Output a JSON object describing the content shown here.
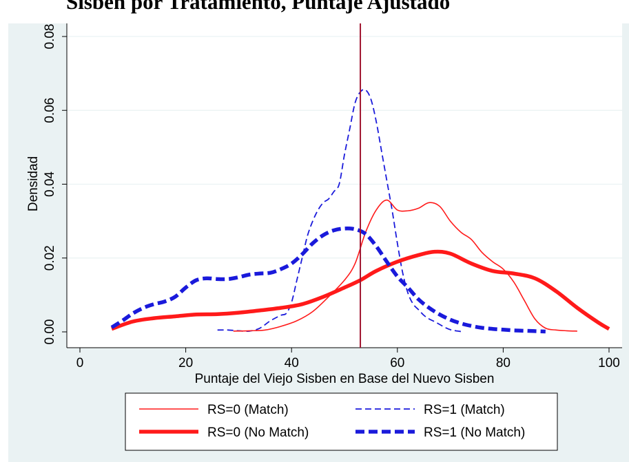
{
  "title": "Sisbén por Tratamiento, Puntaje Ajustado",
  "chart_data": {
    "type": "line",
    "title": "Sisbén por Tratamiento, Puntaje Ajustado",
    "xlabel": "Puntaje del Viejo Sisben en Base del Nuevo Sisben",
    "ylabel": "Densidad",
    "xlim": [
      0,
      100
    ],
    "ylim": [
      0,
      0.08
    ],
    "xticks": [
      "0",
      "20",
      "40",
      "60",
      "80",
      "100"
    ],
    "yticks": [
      "0.00",
      "0.02",
      "0.04",
      "0.06",
      "0.08"
    ],
    "grid": "horizontal",
    "legend_position": "bottom",
    "vline_x": 53,
    "colors": {
      "rs0": "#ff1a1a",
      "rs1": "#1a1adb",
      "vline": "#a0142f",
      "background": "#eaf2f3"
    },
    "series": [
      {
        "name": "RS=0 (Match)",
        "style": "thin-solid",
        "color": "#ff1a1a",
        "x": [
          29,
          32,
          35,
          38,
          41,
          44,
          47,
          50,
          52,
          54,
          56,
          58,
          60,
          62,
          64,
          66,
          68,
          70,
          72,
          74,
          76,
          78,
          80,
          82,
          84,
          86,
          88,
          90,
          92,
          94
        ],
        "y": [
          0.0002,
          0.0003,
          0.0005,
          0.0015,
          0.003,
          0.0055,
          0.0095,
          0.014,
          0.0185,
          0.027,
          0.033,
          0.0357,
          0.033,
          0.0328,
          0.0335,
          0.035,
          0.034,
          0.03,
          0.027,
          0.025,
          0.0215,
          0.019,
          0.017,
          0.0135,
          0.0085,
          0.0035,
          0.001,
          0.0005,
          0.0003,
          0.0002
        ]
      },
      {
        "name": "RS=1 (Match)",
        "style": "thin-dashed",
        "color": "#1a1adb",
        "x": [
          26,
          28,
          30,
          32,
          34,
          36,
          38,
          39,
          40,
          41,
          42,
          43,
          44,
          45,
          46,
          47,
          48,
          49,
          50,
          51,
          52,
          53,
          54,
          55,
          56,
          57,
          58,
          59,
          60,
          61,
          62,
          63,
          64,
          65,
          66,
          67,
          68,
          69,
          70,
          71,
          72
        ],
        "y": [
          0.0005,
          0.0005,
          0.0003,
          0.0002,
          0.001,
          0.003,
          0.0045,
          0.005,
          0.008,
          0.014,
          0.02,
          0.026,
          0.03,
          0.033,
          0.035,
          0.036,
          0.038,
          0.04,
          0.048,
          0.055,
          0.062,
          0.065,
          0.0655,
          0.063,
          0.057,
          0.049,
          0.041,
          0.033,
          0.024,
          0.016,
          0.0105,
          0.0075,
          0.006,
          0.0045,
          0.0035,
          0.0028,
          0.002,
          0.0012,
          0.0006,
          0.0003,
          0.0001
        ]
      },
      {
        "name": "RS=0 (No Match)",
        "style": "thick-solid",
        "color": "#ff1a1a",
        "x": [
          6,
          10,
          14,
          18,
          22,
          26,
          30,
          34,
          38,
          42,
          46,
          50,
          53,
          56,
          60,
          64,
          67,
          70,
          74,
          78,
          82,
          86,
          90,
          94,
          98,
          100
        ],
        "y": [
          0.0008,
          0.0028,
          0.0037,
          0.0042,
          0.0047,
          0.0048,
          0.0052,
          0.0058,
          0.0065,
          0.0075,
          0.0095,
          0.012,
          0.014,
          0.0165,
          0.019,
          0.0208,
          0.0217,
          0.0212,
          0.0185,
          0.0165,
          0.0158,
          0.0145,
          0.011,
          0.0065,
          0.0025,
          0.0008
        ]
      },
      {
        "name": "RS=1 (No Match)",
        "style": "thick-dashed",
        "color": "#1a1adb",
        "x": [
          6,
          8,
          10,
          12,
          14,
          16,
          18,
          20,
          22,
          24,
          26,
          28,
          30,
          32,
          34,
          36,
          38,
          40,
          42,
          44,
          46,
          48,
          50,
          52,
          54,
          56,
          58,
          60,
          62,
          64,
          66,
          68,
          70,
          72,
          74,
          76,
          78,
          80,
          82,
          84,
          86,
          88
        ],
        "y": [
          0.0012,
          0.003,
          0.005,
          0.0065,
          0.0075,
          0.0082,
          0.0095,
          0.012,
          0.014,
          0.0145,
          0.0143,
          0.0143,
          0.0148,
          0.0155,
          0.0158,
          0.016,
          0.017,
          0.0185,
          0.021,
          0.024,
          0.0262,
          0.0275,
          0.028,
          0.0278,
          0.0265,
          0.0232,
          0.019,
          0.015,
          0.012,
          0.0088,
          0.0065,
          0.0047,
          0.0033,
          0.0023,
          0.0016,
          0.0011,
          0.0008,
          0.0006,
          0.0004,
          0.0003,
          0.0002,
          0.0001
        ]
      }
    ]
  }
}
